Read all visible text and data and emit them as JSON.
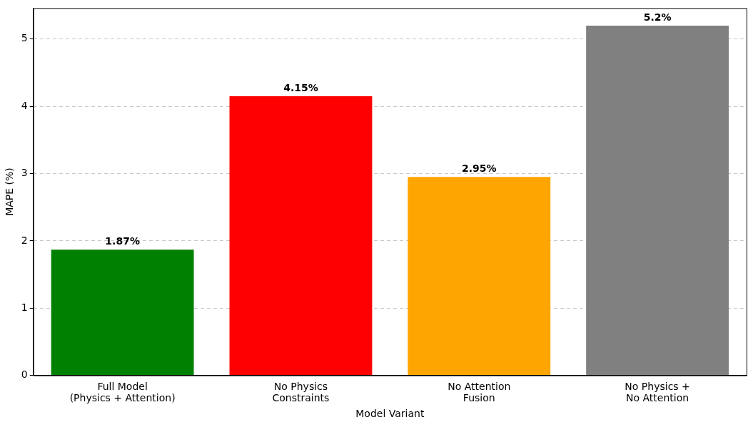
{
  "chart_data": {
    "type": "bar",
    "xlabel": "Model Variant",
    "ylabel": "MAPE (%)",
    "categories": [
      "Full Model\n(Physics + Attention)",
      "No Physics\nConstraints",
      "No Attention\nFusion",
      "No Physics +\nNo Attention"
    ],
    "values": [
      1.87,
      4.15,
      2.95,
      5.2
    ],
    "colors": [
      "#008000",
      "#ff0000",
      "#ffa500",
      "#808080"
    ],
    "value_labels": [
      "1.87%",
      "4.15%",
      "2.95%",
      "5.2%"
    ],
    "ylim": [
      0,
      5.46
    ],
    "yticks": [
      0,
      1,
      2,
      3,
      4,
      5
    ],
    "grid": "y",
    "legend": false
  }
}
